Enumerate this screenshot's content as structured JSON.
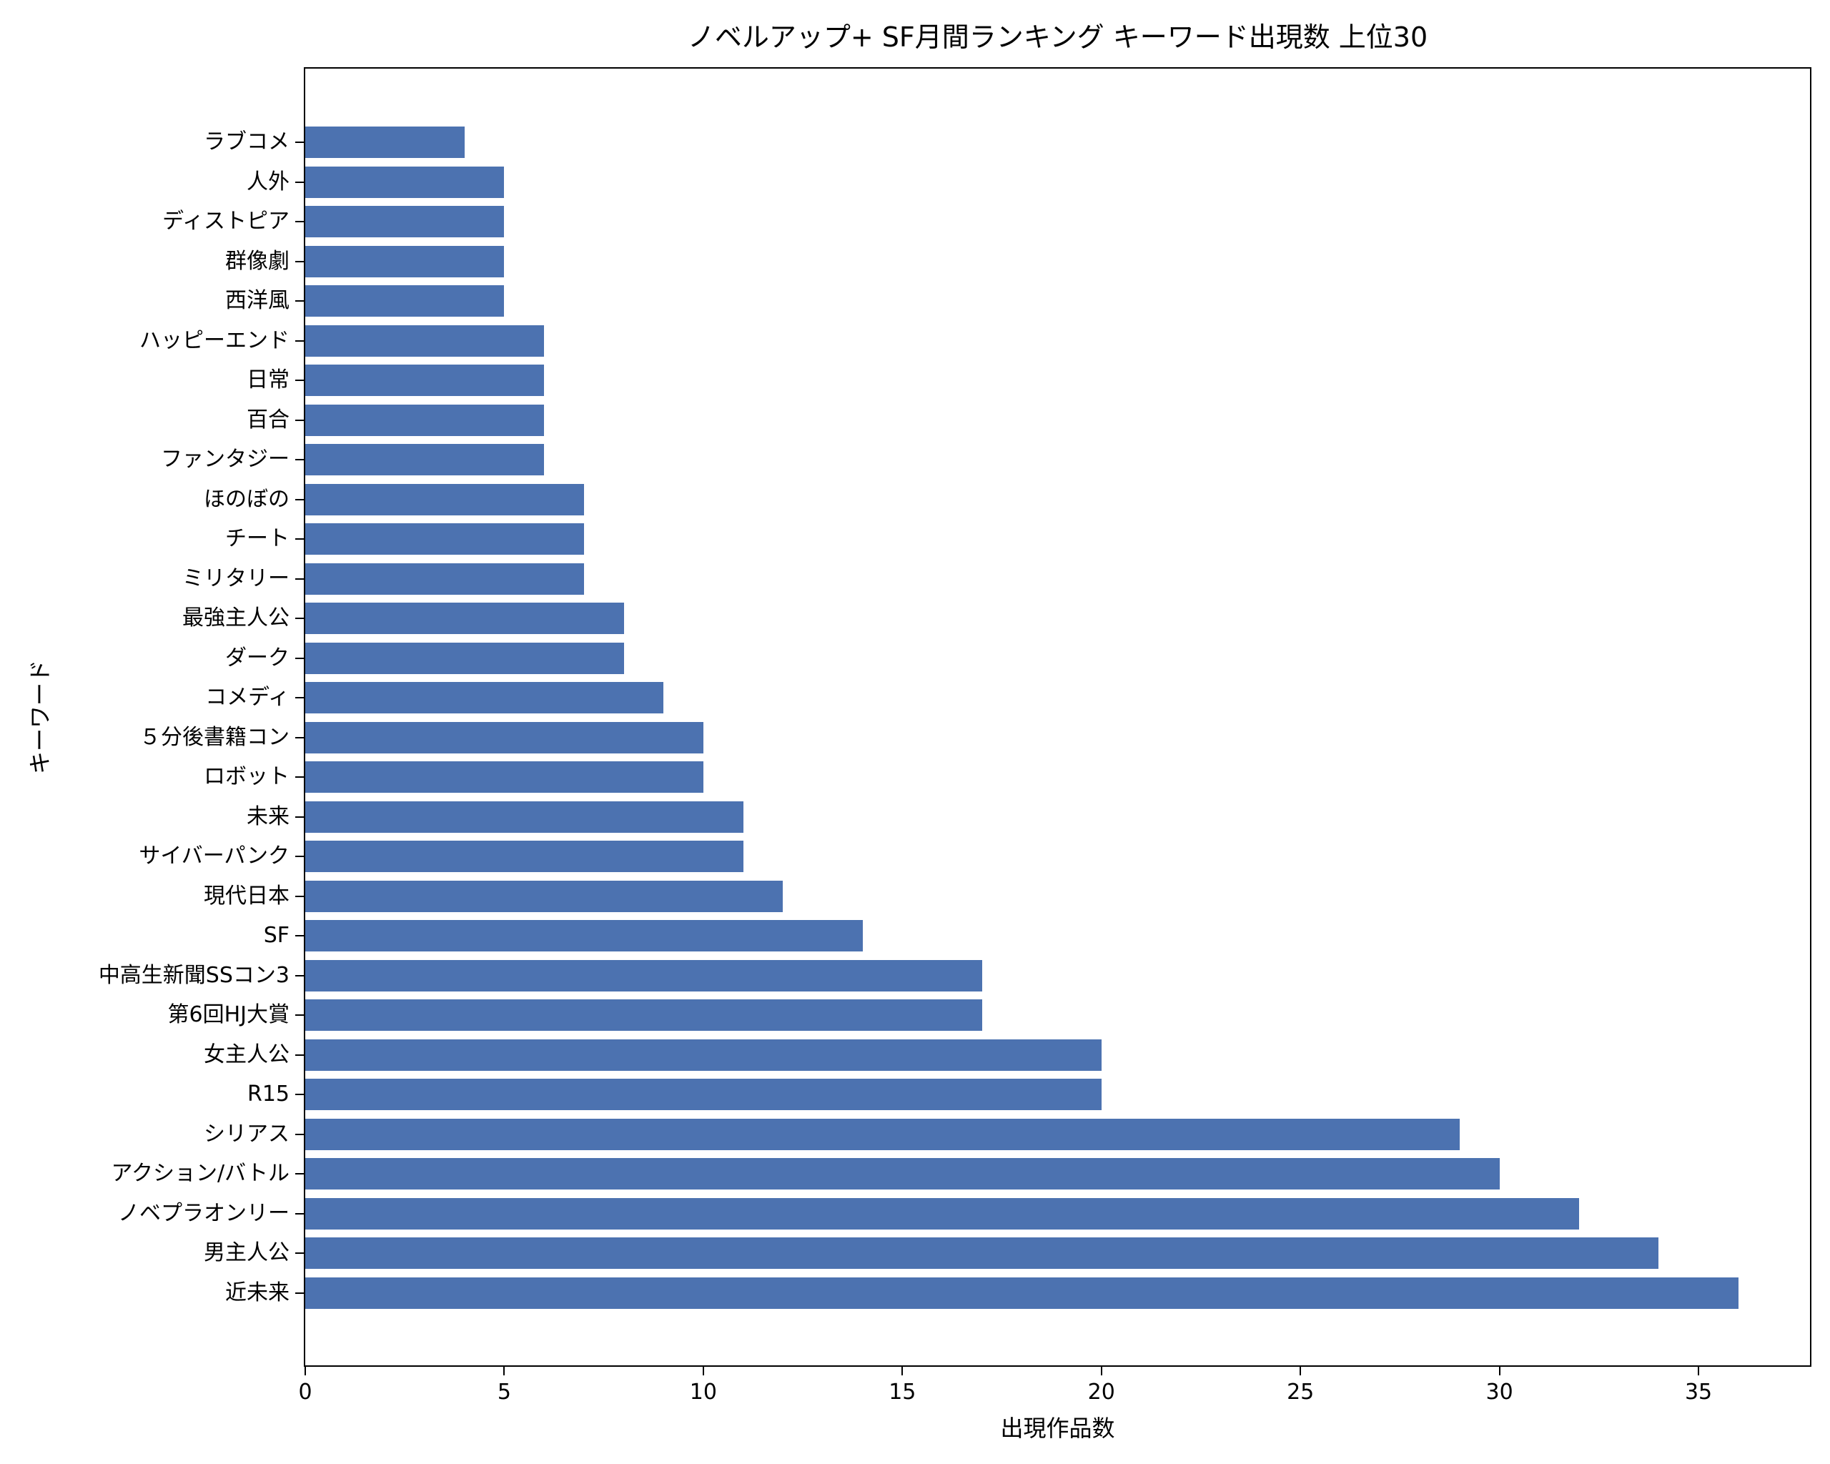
{
  "chart_data": {
    "type": "bar",
    "orientation": "horizontal",
    "title": "ノベルアップ+ SF月間ランキング キーワード出現数 上位30",
    "xlabel": "出現作品数",
    "ylabel": "キーワード",
    "xlim": [
      0,
      37.8
    ],
    "xticks": [
      0,
      5,
      10,
      15,
      20,
      25,
      30,
      35
    ],
    "grid": false,
    "bar_color": "#4c72b0",
    "categories": [
      "ラブコメ",
      "人外",
      "ディストピア",
      "群像劇",
      "西洋風",
      "ハッピーエンド",
      "日常",
      "百合",
      "ファンタジー",
      "ほのぼの",
      "チート",
      "ミリタリー",
      "最強主人公",
      "ダーク",
      "コメディ",
      "５分後書籍コン",
      "ロボット",
      "未来",
      "サイバーパンク",
      "現代日本",
      "SF",
      "中高生新聞SSコン3",
      "第6回HJ大賞",
      "女主人公",
      "R15",
      "シリアス",
      "アクション/バトル",
      "ノベプラオンリー",
      "男主人公",
      "近未来"
    ],
    "values": [
      4,
      5,
      5,
      5,
      5,
      6,
      6,
      6,
      6,
      7,
      7,
      7,
      8,
      8,
      9,
      10,
      10,
      11,
      11,
      12,
      14,
      17,
      17,
      20,
      20,
      29,
      30,
      32,
      34,
      36
    ]
  }
}
